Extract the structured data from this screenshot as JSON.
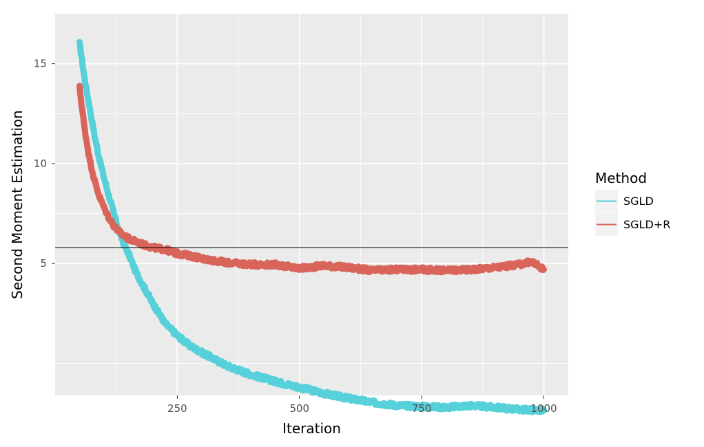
{
  "chart_data": {
    "type": "line",
    "title": "",
    "xlabel": "Iteration",
    "ylabel": "Second Moment Estimation",
    "xlim": [
      0,
      1050
    ],
    "ylim": [
      -1.6,
      17.5
    ],
    "x_ticks": [
      250,
      500,
      750,
      1000
    ],
    "x_tick_labels": [
      "250",
      "500",
      "750",
      "1000"
    ],
    "y_ticks": [
      5,
      10,
      15
    ],
    "y_tick_labels": [
      "5",
      "10",
      "15"
    ],
    "y_minor_gridlines": [
      0,
      7.5,
      12.5
    ],
    "x_minor_gridlines": [
      125,
      375,
      625,
      875
    ],
    "reference_line_y": 5.8,
    "grid": true,
    "legend": {
      "title": "Method",
      "placement": "right"
    },
    "series": [
      {
        "name": "SGLD",
        "color": "#56d0d9",
        "x": [
          50,
          55,
          60,
          70,
          80,
          90,
          100,
          110,
          120,
          130,
          140,
          150,
          165,
          180,
          200,
          225,
          250,
          275,
          300,
          350,
          400,
          450,
          500,
          550,
          600,
          650,
          700,
          750,
          800,
          850,
          900,
          950,
          1000
        ],
        "y": [
          16.0,
          15.2,
          14.3,
          12.9,
          11.5,
          10.3,
          9.3,
          8.4,
          7.5,
          6.7,
          6.0,
          5.5,
          4.6,
          3.9,
          3.0,
          2.0,
          1.4,
          0.9,
          0.55,
          -0.1,
          -0.55,
          -0.9,
          -1.2,
          -1.5,
          -1.75,
          -1.95,
          -2.1,
          -2.15,
          -2.2,
          -2.1,
          -2.2,
          -2.3,
          -2.35
        ]
      },
      {
        "name": "SGLD+R",
        "color": "#d96459",
        "x": [
          50,
          55,
          60,
          70,
          80,
          90,
          100,
          110,
          120,
          130,
          140,
          150,
          165,
          180,
          200,
          225,
          250,
          275,
          300,
          350,
          400,
          450,
          500,
          550,
          600,
          650,
          700,
          750,
          800,
          850,
          900,
          950,
          975,
          1000
        ],
        "y": [
          13.8,
          12.8,
          11.8,
          10.3,
          9.2,
          8.4,
          7.8,
          7.3,
          6.9,
          6.6,
          6.4,
          6.25,
          6.1,
          5.95,
          5.8,
          5.7,
          5.5,
          5.4,
          5.25,
          5.05,
          4.95,
          4.95,
          4.75,
          4.9,
          4.8,
          4.65,
          4.7,
          4.7,
          4.65,
          4.7,
          4.8,
          4.95,
          5.1,
          4.7
        ]
      }
    ]
  }
}
